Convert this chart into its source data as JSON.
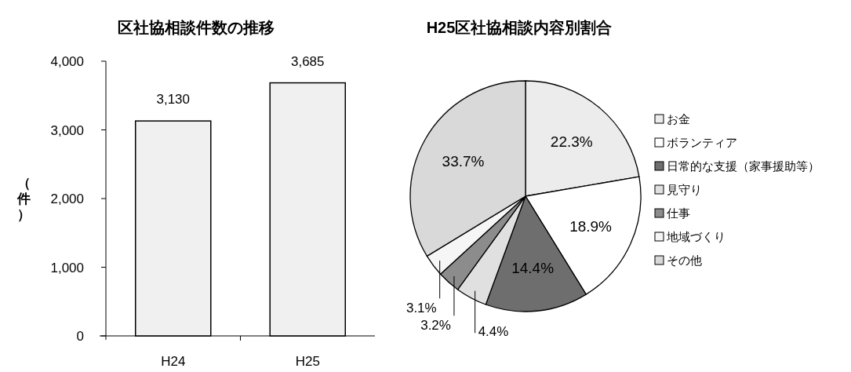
{
  "chart_data": [
    {
      "type": "bar",
      "title": "区社協相談件数の推移",
      "ylabel": "（件）",
      "categories": [
        "H24",
        "H25"
      ],
      "values": [
        3130,
        3685
      ],
      "value_labels": [
        "3,130",
        "3,685"
      ],
      "color": "#f0f0f0",
      "ylim": [
        0,
        4000
      ],
      "yticks": [
        0,
        {
          "value": 1000,
          "label": "1,000"
        },
        {
          "value": 2000,
          "label": "2,000"
        },
        {
          "value": 3000,
          "label": "3,000"
        },
        {
          "value": 4000,
          "label": "4,000"
        }
      ],
      "grid": false
    },
    {
      "type": "pie",
      "title": "H25区社協相談内容別割合",
      "categories": [
        "お金",
        "ボランティア",
        "日常的な支援（家事援助等）",
        "見守り",
        "仕事",
        "地域づくり",
        "その他"
      ],
      "values": [
        22.3,
        18.9,
        14.4,
        4.4,
        3.2,
        3.1,
        33.7
      ],
      "value_labels": [
        "22.3%",
        "18.9%",
        "14.4%",
        "4.4%",
        "3.2%",
        "3.1%",
        "33.7%"
      ],
      "colors": [
        "#ececec",
        "#ffffff",
        "#6e6e6e",
        "#e0e0e0",
        "#8c8c8c",
        "#f6f6f6",
        "#d9d9d9"
      ],
      "legend": "right"
    }
  ]
}
